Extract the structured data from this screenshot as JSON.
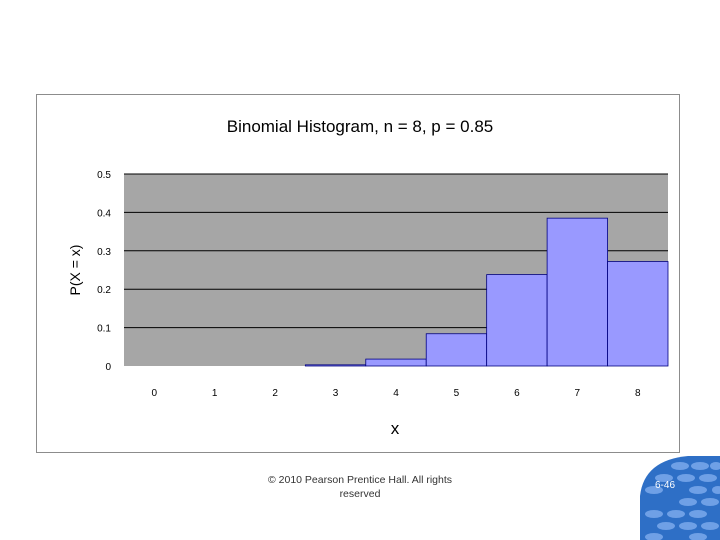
{
  "footer": {
    "copyright_line1": "© 2010 Pearson Prentice Hall. All rights",
    "copyright_line2": "reserved",
    "slide_number": "6-46"
  },
  "colors": {
    "plot_background": "#a6a6a6",
    "bar_fill": "#9999ff",
    "bar_edge": "#000080",
    "gridline": "#000000",
    "badge_blue": "#2e6fc6"
  },
  "chart_data": {
    "type": "bar",
    "title": "Binomial Histogram, n = 8, p = 0.85",
    "xlabel": "x",
    "ylabel": "P(X = x)",
    "categories": [
      "0",
      "1",
      "2",
      "3",
      "4",
      "5",
      "6",
      "7",
      "8"
    ],
    "values": [
      0.0,
      0.0,
      0.0,
      0.003,
      0.018,
      0.084,
      0.238,
      0.385,
      0.272
    ],
    "ylim": [
      0,
      0.5
    ],
    "yticks": [
      "0",
      "0.1",
      "0.2",
      "0.3",
      "0.4",
      "0.5"
    ],
    "grid": true,
    "legend": "none"
  }
}
